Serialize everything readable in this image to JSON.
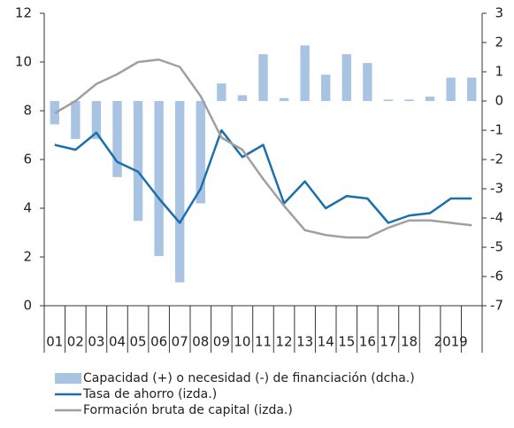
{
  "chart_data": {
    "type": "bar",
    "categories": [
      "01",
      "02",
      "03",
      "04",
      "05",
      "06",
      "07",
      "08",
      "09",
      "10",
      "11",
      "12",
      "13",
      "14",
      "15",
      "16",
      "17",
      "18",
      null,
      "2019",
      null
    ],
    "ylim": [
      0,
      12
    ],
    "yticks": [
      0,
      2,
      4,
      6,
      8,
      10,
      12
    ],
    "y2lim": [
      -7,
      3
    ],
    "y2ticks": [
      -7,
      -6,
      -5,
      -4,
      -3,
      -2,
      -1,
      0,
      1,
      2,
      3
    ],
    "series": [
      {
        "name": "Capacidad (+) o necesidad (-) de financiación (dcha.)",
        "type": "bar",
        "axis": "y2",
        "color": "#a9c4e3",
        "values": [
          -0.8,
          -1.3,
          -1.3,
          -2.6,
          -4.1,
          -5.3,
          -6.2,
          -3.5,
          0.6,
          0.2,
          1.6,
          0.1,
          1.9,
          0.9,
          1.6,
          1.3,
          0.05,
          0.05,
          0.15,
          0.8,
          0.8
        ]
      },
      {
        "name": "Tasa de ahorro (izda.)",
        "type": "line",
        "color": "#1a6fad",
        "values": [
          6.6,
          6.4,
          7.1,
          5.9,
          5.5,
          4.4,
          3.4,
          4.8,
          7.2,
          6.1,
          6.6,
          4.2,
          5.1,
          4.0,
          4.5,
          4.4,
          3.4,
          3.7,
          3.8,
          4.4,
          4.4
        ]
      },
      {
        "name": "Formación bruta de capital (izda.)",
        "type": "line",
        "color": "#a0a0a0",
        "values": [
          7.9,
          8.4,
          9.1,
          9.5,
          10.0,
          10.1,
          9.8,
          8.6,
          6.9,
          6.4,
          5.2,
          4.1,
          3.1,
          2.9,
          2.8,
          2.8,
          3.2,
          3.5,
          3.5,
          3.4,
          3.3
        ]
      }
    ]
  }
}
